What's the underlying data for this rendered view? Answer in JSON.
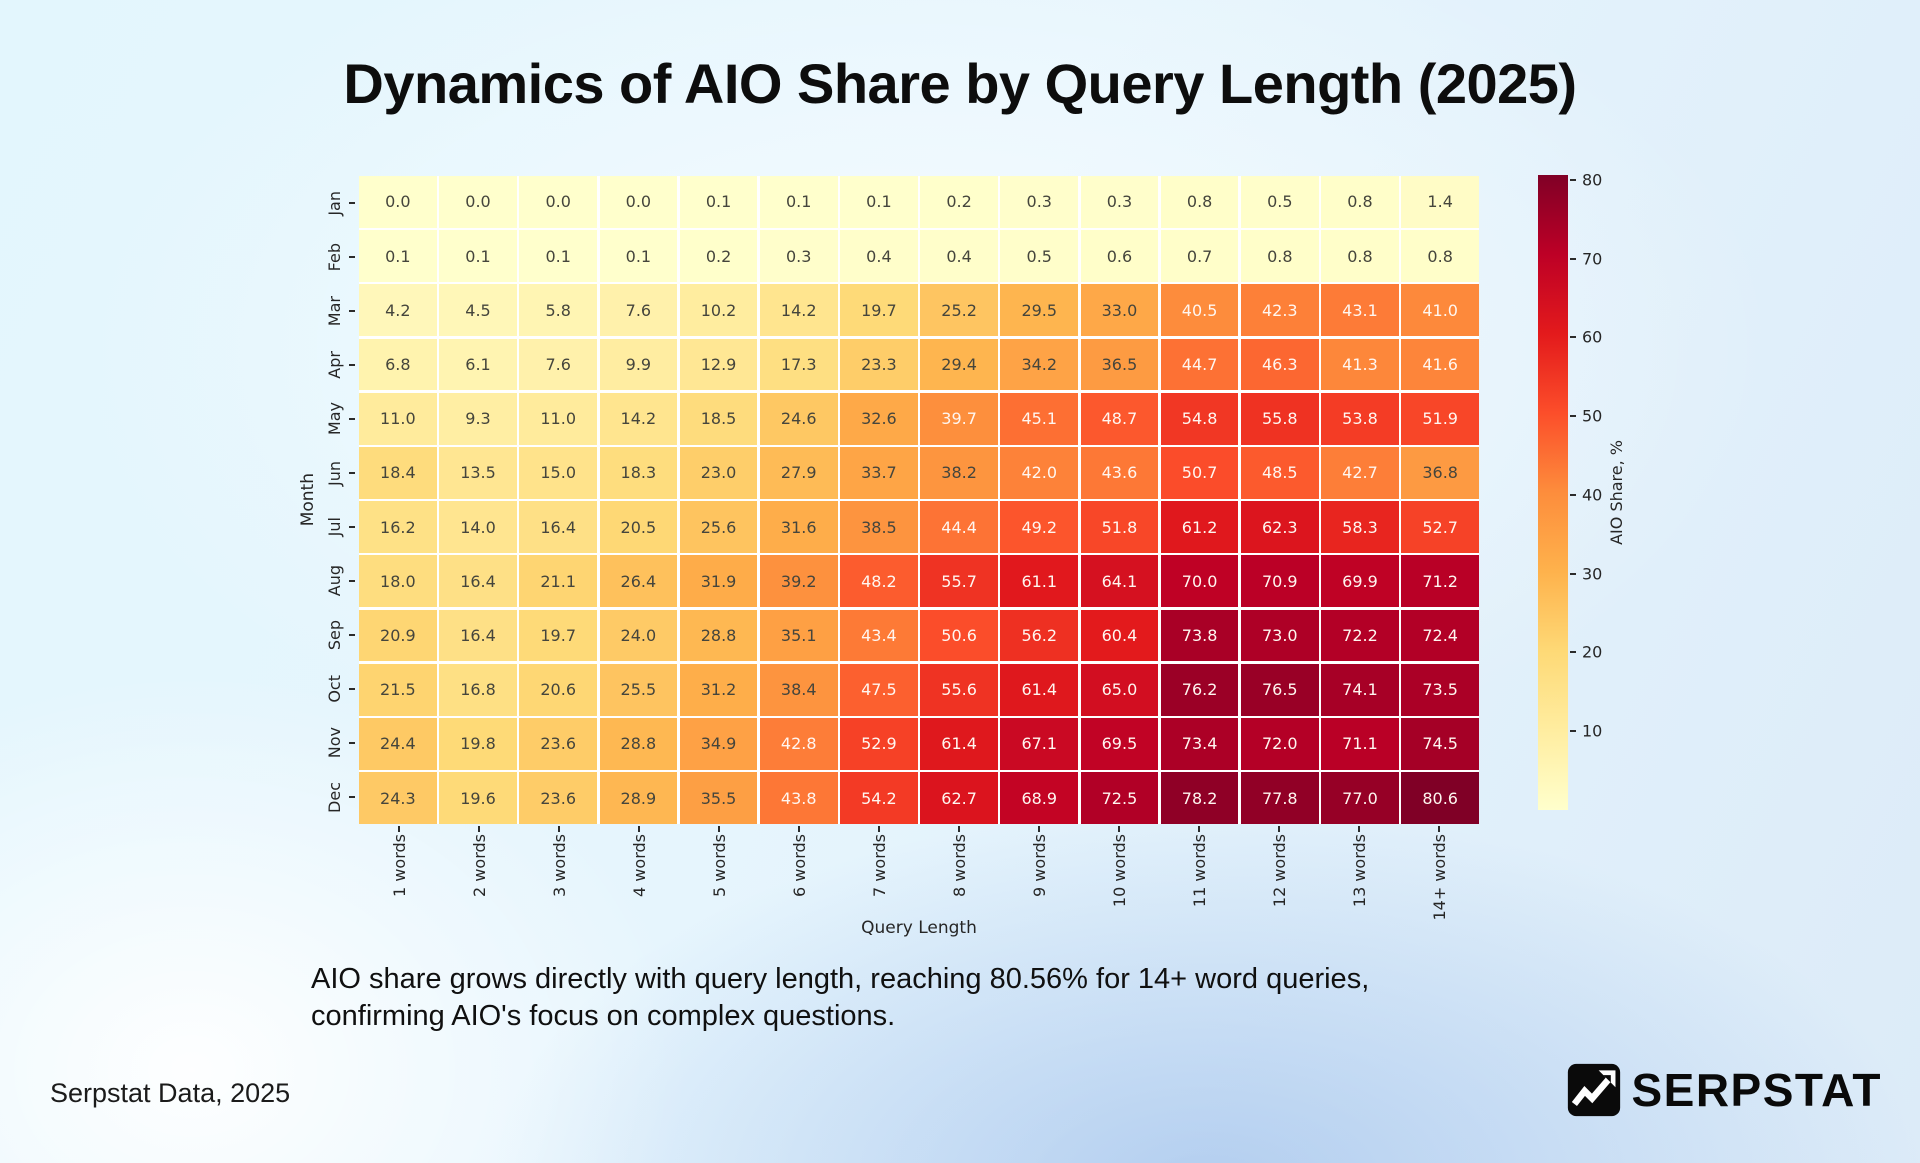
{
  "page": {
    "title": "Dynamics of AIO Share by Query Length (2025)",
    "subtitle_lines": [
      "AIO share grows directly with query length, reaching 80.56% for 14+ word queries,",
      "confirming AIO's focus on complex questions."
    ],
    "source": "Serpstat Data, 2025"
  },
  "brand": {
    "wordmark": "SERPSTAT",
    "icon": "serpstat-trend-arrow-icon",
    "color": "#0a0a0a"
  },
  "chart_data": {
    "type": "heatmap",
    "title": "Dynamics of AIO Share by Query Length (2025)",
    "xlabel": "Query Length",
    "ylabel": "Month",
    "colorbar_label": "AIO Share, %",
    "x_categories": [
      "1 words",
      "2 words",
      "3 words",
      "4 words",
      "5 words",
      "6 words",
      "7 words",
      "8 words",
      "9 words",
      "10 words",
      "11 words",
      "12 words",
      "13 words",
      "14+ words"
    ],
    "y_categories": [
      "Jan",
      "Feb",
      "Mar",
      "Apr",
      "May",
      "Jun",
      "Jul",
      "Aug",
      "Sep",
      "Oct",
      "Nov",
      "Dec"
    ],
    "values": [
      [
        0.0,
        0.0,
        0.0,
        0.0,
        0.1,
        0.1,
        0.1,
        0.2,
        0.3,
        0.3,
        0.8,
        0.5,
        0.8,
        1.4
      ],
      [
        0.1,
        0.1,
        0.1,
        0.1,
        0.2,
        0.3,
        0.4,
        0.4,
        0.5,
        0.6,
        0.7,
        0.8,
        0.8,
        0.8
      ],
      [
        4.2,
        4.5,
        5.8,
        7.6,
        10.2,
        14.2,
        19.7,
        25.2,
        29.5,
        33.0,
        40.5,
        42.3,
        43.1,
        41.0
      ],
      [
        6.8,
        6.1,
        7.6,
        9.9,
        12.9,
        17.3,
        23.3,
        29.4,
        34.2,
        36.5,
        44.7,
        46.3,
        41.3,
        41.6
      ],
      [
        11.0,
        9.3,
        11.0,
        14.2,
        18.5,
        24.6,
        32.6,
        39.7,
        45.1,
        48.7,
        54.8,
        55.8,
        53.8,
        51.9
      ],
      [
        18.4,
        13.5,
        15.0,
        18.3,
        23.0,
        27.9,
        33.7,
        38.2,
        42.0,
        43.6,
        50.7,
        48.5,
        42.7,
        36.8
      ],
      [
        16.2,
        14.0,
        16.4,
        20.5,
        25.6,
        31.6,
        38.5,
        44.4,
        49.2,
        51.8,
        61.2,
        62.3,
        58.3,
        52.7
      ],
      [
        18.0,
        16.4,
        21.1,
        26.4,
        31.9,
        39.2,
        48.2,
        55.7,
        61.1,
        64.1,
        70.0,
        70.9,
        69.9,
        71.2
      ],
      [
        20.9,
        16.4,
        19.7,
        24.0,
        28.8,
        35.1,
        43.4,
        50.6,
        56.2,
        60.4,
        73.8,
        73.0,
        72.2,
        72.4
      ],
      [
        21.5,
        16.8,
        20.6,
        25.5,
        31.2,
        38.4,
        47.5,
        55.6,
        61.4,
        65.0,
        76.2,
        76.5,
        74.1,
        73.5
      ],
      [
        24.4,
        19.8,
        23.6,
        28.8,
        34.9,
        42.8,
        52.9,
        61.4,
        67.1,
        69.5,
        73.4,
        72.0,
        71.1,
        74.5
      ],
      [
        24.3,
        19.6,
        23.6,
        28.9,
        35.5,
        43.8,
        54.2,
        62.7,
        68.9,
        72.5,
        78.2,
        77.8,
        77.0,
        80.6
      ]
    ],
    "vmin": 0,
    "vmax": 80.6,
    "colormap": "YlOrRd",
    "colormap_stops": [
      "#ffffcc",
      "#ffeda0",
      "#fed976",
      "#feb24c",
      "#fd8d3c",
      "#fc4e2a",
      "#e31a1c",
      "#bd0026",
      "#800026"
    ],
    "colorbar_ticks": [
      10,
      20,
      30,
      40,
      50,
      60,
      70,
      80
    ],
    "grid_line_color": "#ffffff",
    "legend_position": "right",
    "annotation": {
      "decimals": 1,
      "dark_text_color": "#45453c",
      "light_text_color": "#fff6f0",
      "light_text_min_value": 39.5
    }
  }
}
